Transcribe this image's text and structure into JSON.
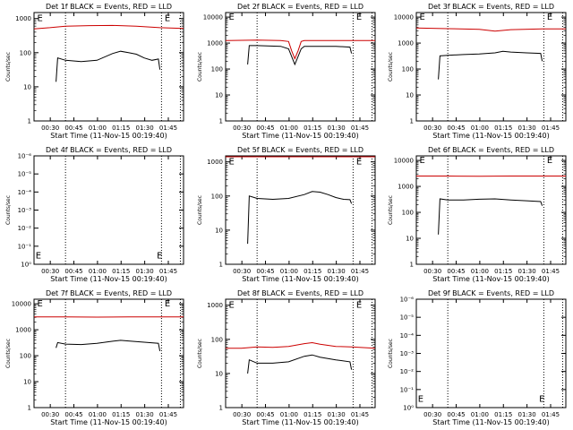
{
  "chart_data": [
    {
      "type": "line",
      "title": "Det 1f BLACK = Events, RED = LLD",
      "xlabel": "Start Time (11-Nov-15 00:19:40)",
      "ylabel": "Counts/sec",
      "x_ticklabels": [
        "00:30",
        "00:45",
        "01:00",
        "01:15",
        "01:30",
        "01:45"
      ],
      "y_ticklabels": [
        "1",
        "10",
        "100",
        "1000"
      ],
      "xlim_minutes": [
        0,
        95
      ],
      "ylim": [
        1,
        1500
      ],
      "y_scale": "log",
      "vlines_minutes": [
        20,
        81,
        93
      ],
      "markers": [
        {
          "label": "E",
          "x_minutes": 2,
          "y": 1000
        },
        {
          "label": "E",
          "x_minutes": 83,
          "y": 1000
        }
      ],
      "series": [
        {
          "color": "#cc0000",
          "x_minutes": [
            0,
            10,
            20,
            35,
            50,
            65,
            80,
            95
          ],
          "values": [
            500,
            540,
            600,
            620,
            630,
            600,
            540,
            510
          ]
        },
        {
          "color": "#000000",
          "x_minutes": [
            14,
            15,
            20,
            30,
            40,
            50,
            55,
            60,
            65,
            70,
            75,
            79,
            80
          ],
          "values": [
            14,
            70,
            60,
            55,
            60,
            95,
            110,
            100,
            90,
            70,
            60,
            65,
            32
          ]
        }
      ]
    },
    {
      "type": "line",
      "title": "Det 2f BLACK = Events, RED = LLD",
      "xlabel": "Start Time (11-Nov-15 00:19:40)",
      "ylabel": "Counts/sec",
      "x_ticklabels": [
        "00:30",
        "00:45",
        "01:00",
        "01:15",
        "01:30",
        "01:45"
      ],
      "y_ticklabels": [
        "1",
        "10",
        "100",
        "1000",
        "10000"
      ],
      "xlim_minutes": [
        0,
        95
      ],
      "ylim": [
        1,
        15000
      ],
      "y_scale": "log",
      "vlines_minutes": [
        20,
        81,
        93
      ],
      "markers": [
        {
          "label": "E",
          "x_minutes": 2,
          "y": 10000
        },
        {
          "label": "E",
          "x_minutes": 83,
          "y": 10000
        }
      ],
      "series": [
        {
          "color": "#cc0000",
          "x_minutes": [
            0,
            20,
            35,
            40,
            42,
            44,
            46,
            48,
            50,
            60,
            80,
            95
          ],
          "values": [
            1250,
            1300,
            1250,
            1150,
            500,
            250,
            500,
            1150,
            1250,
            1250,
            1250,
            1250
          ]
        },
        {
          "color": "#000000",
          "x_minutes": [
            14,
            15,
            20,
            35,
            40,
            42,
            44,
            46,
            48,
            50,
            60,
            70,
            79,
            80
          ],
          "values": [
            150,
            800,
            800,
            750,
            600,
            300,
            150,
            300,
            600,
            750,
            750,
            750,
            700,
            400
          ]
        }
      ]
    },
    {
      "type": "line",
      "title": "Det 3f BLACK = Events, RED = LLD",
      "xlabel": "Start Time (11-Nov-15 00:19:40)",
      "ylabel": "Counts/sec",
      "x_ticklabels": [
        "00:30",
        "00:45",
        "01:00",
        "01:15",
        "01:30",
        "01:45"
      ],
      "y_ticklabels": [
        "1",
        "10",
        "100",
        "1000",
        "10000"
      ],
      "xlim_minutes": [
        0,
        95
      ],
      "ylim": [
        1,
        15000
      ],
      "y_scale": "log",
      "vlines_minutes": [
        20,
        81,
        93
      ],
      "markers": [
        {
          "label": "E",
          "x_minutes": 2,
          "y": 10000
        },
        {
          "label": "E",
          "x_minutes": 83,
          "y": 10000
        }
      ],
      "series": [
        {
          "color": "#cc0000",
          "x_minutes": [
            0,
            20,
            40,
            50,
            60,
            80,
            95
          ],
          "values": [
            3800,
            3600,
            3400,
            2900,
            3300,
            3500,
            3500
          ]
        },
        {
          "color": "#000000",
          "x_minutes": [
            14,
            15,
            20,
            30,
            40,
            50,
            55,
            60,
            70,
            79,
            80
          ],
          "values": [
            40,
            320,
            340,
            360,
            380,
            420,
            480,
            450,
            420,
            400,
            200
          ]
        }
      ]
    },
    {
      "type": "line",
      "title": "Det 4f BLACK = Events, RED = LLD",
      "xlabel": "Start Time (11-Nov-15 00:19:40)",
      "ylabel": "Counts/sec",
      "x_ticklabels": [
        "00:30",
        "00:45",
        "01:00",
        "01:15",
        "01:30",
        "01:45"
      ],
      "y_ticklabels": [
        "10⁰",
        "10⁻¹",
        "10⁻²",
        "10⁻³",
        "10⁻⁴",
        "10⁻⁵",
        "10⁻⁶"
      ],
      "xlim_minutes": [
        0,
        95
      ],
      "y_scale": "log",
      "vlines_minutes": [
        20,
        81,
        93
      ],
      "markers": [
        {
          "label": "E",
          "x_minutes": 1,
          "y_fraction": 0.08
        },
        {
          "label": "E",
          "x_minutes": 78,
          "y_fraction": 0.08
        }
      ],
      "series": []
    },
    {
      "type": "line",
      "title": "Det 5f BLACK = Events, RED = LLD",
      "xlabel": "Start Time (11-Nov-15 00:19:40)",
      "ylabel": "Counts/sec",
      "x_ticklabels": [
        "00:30",
        "00:45",
        "01:00",
        "01:15",
        "01:30",
        "01:45"
      ],
      "y_ticklabels": [
        "1",
        "10",
        "100",
        "1000"
      ],
      "xlim_minutes": [
        0,
        95
      ],
      "ylim": [
        1,
        1500
      ],
      "y_scale": "log",
      "vlines_minutes": [
        20,
        81,
        93
      ],
      "markers": [
        {
          "label": "E",
          "x_minutes": 2,
          "y": 1000
        },
        {
          "label": "E",
          "x_minutes": 83,
          "y": 1000
        }
      ],
      "series": [
        {
          "color": "#cc0000",
          "x_minutes": [
            0,
            95
          ],
          "values": [
            2000,
            2000
          ]
        },
        {
          "color": "#000000",
          "x_minutes": [
            14,
            15,
            20,
            30,
            40,
            50,
            55,
            60,
            65,
            70,
            75,
            79,
            80
          ],
          "values": [
            4,
            100,
            85,
            80,
            85,
            110,
            135,
            130,
            110,
            90,
            80,
            78,
            60
          ]
        }
      ]
    },
    {
      "type": "line",
      "title": "Det 6f BLACK = Events, RED = LLD",
      "xlabel": "Start Time (11-Nov-15 00:19:40)",
      "ylabel": "Counts/sec",
      "x_ticklabels": [
        "00:30",
        "00:45",
        "01:00",
        "01:15",
        "01:30",
        "01:45"
      ],
      "y_ticklabels": [
        "1",
        "10",
        "100",
        "1000",
        "10000"
      ],
      "xlim_minutes": [
        0,
        95
      ],
      "ylim": [
        1,
        15000
      ],
      "y_scale": "log",
      "vlines_minutes": [
        20,
        81,
        93
      ],
      "markers": [
        {
          "label": "E",
          "x_minutes": 2,
          "y": 10000
        },
        {
          "label": "E",
          "x_minutes": 83,
          "y": 10000
        }
      ],
      "series": [
        {
          "color": "#cc0000",
          "x_minutes": [
            0,
            20,
            40,
            60,
            80,
            95
          ],
          "values": [
            2500,
            2500,
            2450,
            2500,
            2500,
            2500
          ]
        },
        {
          "color": "#000000",
          "x_minutes": [
            14,
            15,
            20,
            30,
            40,
            50,
            60,
            70,
            79,
            80
          ],
          "values": [
            14,
            330,
            300,
            300,
            320,
            330,
            300,
            280,
            260,
            180
          ]
        }
      ]
    },
    {
      "type": "line",
      "title": "Det 7f BLACK = Events, RED = LLD",
      "xlabel": "Start Time (11-Nov-15 00:19:40)",
      "ylabel": "Counts/sec",
      "x_ticklabels": [
        "00:30",
        "00:45",
        "01:00",
        "01:15",
        "01:30",
        "01:45"
      ],
      "y_ticklabels": [
        "1",
        "10",
        "100",
        "1000",
        "10000"
      ],
      "xlim_minutes": [
        0,
        95
      ],
      "ylim": [
        1,
        15000
      ],
      "y_scale": "log",
      "vlines_minutes": [
        20,
        81,
        93
      ],
      "markers": [
        {
          "label": "E",
          "x_minutes": 2,
          "y": 10000
        },
        {
          "label": "E",
          "x_minutes": 83,
          "y": 10000
        }
      ],
      "series": [
        {
          "color": "#cc0000",
          "x_minutes": [
            0,
            20,
            40,
            60,
            80,
            95
          ],
          "values": [
            3100,
            3100,
            3050,
            3100,
            3100,
            3100
          ]
        },
        {
          "color": "#000000",
          "x_minutes": [
            14,
            15,
            20,
            30,
            40,
            50,
            55,
            60,
            70,
            79,
            80
          ],
          "values": [
            200,
            320,
            280,
            270,
            300,
            360,
            390,
            370,
            330,
            300,
            150
          ]
        }
      ]
    },
    {
      "type": "line",
      "title": "Det 8f BLACK = Events, RED = LLD",
      "xlabel": "Start Time (11-Nov-15 00:19:40)",
      "ylabel": "Counts/sec",
      "x_ticklabels": [
        "00:30",
        "00:45",
        "01:00",
        "01:15",
        "01:30",
        "01:45"
      ],
      "y_ticklabels": [
        "1",
        "10",
        "100",
        "1000"
      ],
      "xlim_minutes": [
        0,
        95
      ],
      "ylim": [
        1,
        1500
      ],
      "y_scale": "log",
      "vlines_minutes": [
        20,
        81,
        93
      ],
      "markers": [
        {
          "label": "E",
          "x_minutes": 2,
          "y": 1000
        },
        {
          "label": "E",
          "x_minutes": 83,
          "y": 1000
        }
      ],
      "series": [
        {
          "color": "#cc0000",
          "x_minutes": [
            0,
            10,
            20,
            30,
            40,
            50,
            55,
            60,
            70,
            80,
            95
          ],
          "values": [
            55,
            55,
            60,
            58,
            62,
            75,
            80,
            72,
            62,
            60,
            55
          ]
        },
        {
          "color": "#000000",
          "x_minutes": [
            14,
            15,
            20,
            30,
            40,
            50,
            55,
            60,
            70,
            79,
            80
          ],
          "values": [
            10,
            25,
            20,
            20,
            22,
            32,
            35,
            30,
            25,
            22,
            13
          ]
        }
      ]
    },
    {
      "type": "line",
      "title": "Det 9f BLACK = Events, RED = LLD",
      "xlabel": "Start Time (11-Nov-15 00:19:40)",
      "ylabel": "Counts/sec",
      "x_ticklabels": [
        "00:30",
        "00:45",
        "01:00",
        "01:15",
        "01:30",
        "01:45"
      ],
      "y_ticklabels": [
        "10⁰",
        "10⁻¹",
        "10⁻²",
        "10⁻³",
        "10⁻⁴",
        "10⁻⁵",
        "10⁻⁶"
      ],
      "xlim_minutes": [
        0,
        95
      ],
      "y_scale": "log",
      "vlines_minutes": [
        20,
        81,
        93
      ],
      "markers": [
        {
          "label": "E",
          "x_minutes": 1,
          "y_fraction": 0.08
        },
        {
          "label": "E",
          "x_minutes": 78,
          "y_fraction": 0.08
        }
      ],
      "series": []
    }
  ]
}
